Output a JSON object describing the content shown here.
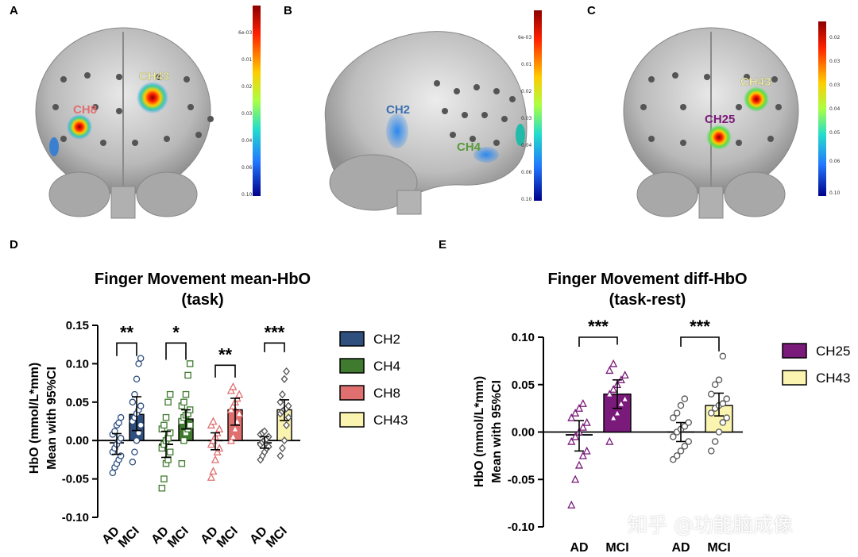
{
  "panels": {
    "a": "A",
    "b": "B",
    "c": "C",
    "d": "D",
    "e": "E"
  },
  "brain_a": {
    "labels": [
      "CH43",
      "CH8"
    ],
    "label_colors": [
      "#f3f0a0",
      "#e07070"
    ],
    "colorbar_ticks": [
      "6e-03",
      "0.01",
      "0.02",
      "0.03",
      "0.04",
      "0.06",
      "0.10"
    ]
  },
  "brain_b": {
    "labels": [
      "CH2",
      "CH4"
    ],
    "label_colors": [
      "#3a6fb0",
      "#5a9a3a"
    ],
    "colorbar_ticks": [
      "6e-03",
      "0.01",
      "0.02",
      "0.03",
      "0.04",
      "0.06",
      "0.10"
    ]
  },
  "brain_c": {
    "labels": [
      "CH43",
      "CH25"
    ],
    "label_colors": [
      "#f3f0a0",
      "#7a1a7a"
    ],
    "colorbar_ticks": [
      "0.02",
      "0.03",
      "0.03",
      "0.04",
      "0.05",
      "0.06",
      "0.10"
    ]
  },
  "watermark": "知乎 @功能脑成像",
  "chart_data": [
    {
      "type": "bar",
      "title": "Finger Movement mean-HbO",
      "subtitle": "(task)",
      "ylabel": "HbO (mmol/L*mm)",
      "ylabel2": "Mean with 95%CI",
      "ylim": [
        -0.1,
        0.15
      ],
      "yticks": [
        "0.15",
        "0.10",
        "0.05",
        "0.00",
        "-0.05",
        "-0.10"
      ],
      "ytick_values": [
        0.15,
        0.1,
        0.05,
        0.0,
        -0.05,
        -0.1
      ],
      "categories": [
        "AD",
        "MCI"
      ],
      "series": [
        {
          "name": "CH2",
          "color": "#2f4f7f",
          "marker": "circle",
          "means": [
            -0.003,
            0.034
          ],
          "ci_low": [
            -0.018,
            0.013
          ],
          "ci_high": [
            0.009,
            0.057
          ],
          "sig": "**",
          "points_ad": [
            -0.042,
            -0.035,
            -0.03,
            -0.025,
            -0.02,
            -0.015,
            -0.01,
            -0.005,
            0.0,
            0.003,
            0.008,
            0.012,
            0.02,
            0.023,
            0.03
          ],
          "points_mci": [
            -0.028,
            -0.015,
            0.0,
            0.01,
            0.02,
            0.025,
            0.03,
            0.035,
            0.04,
            0.045,
            0.05,
            0.06,
            0.08,
            0.1,
            0.107
          ]
        },
        {
          "name": "CH4",
          "color": "#3f7a2f",
          "marker": "square",
          "means": [
            -0.005,
            0.028
          ],
          "ci_low": [
            -0.022,
            0.015
          ],
          "ci_high": [
            0.012,
            0.04
          ],
          "sig": "*",
          "points_ad": [
            -0.062,
            -0.05,
            -0.03,
            -0.025,
            -0.015,
            -0.01,
            -0.005,
            0.0,
            0.003,
            0.01,
            0.015,
            0.02,
            0.03,
            0.05,
            0.06
          ],
          "points_mci": [
            -0.03,
            0.0,
            0.01,
            0.015,
            0.02,
            0.025,
            0.03,
            0.033,
            0.035,
            0.04,
            0.045,
            0.05,
            0.06,
            0.085,
            0.1
          ]
        },
        {
          "name": "CH8",
          "color": "#e07070",
          "marker": "triangle",
          "means": [
            0.0,
            0.04
          ],
          "ci_low": [
            -0.012,
            0.02
          ],
          "ci_high": [
            0.01,
            0.055
          ],
          "sig": "**",
          "points_ad": [
            -0.048,
            -0.04,
            -0.025,
            -0.015,
            -0.01,
            -0.005,
            0.0,
            0.005,
            0.01,
            0.015,
            0.02,
            0.025
          ],
          "points_mci": [
            0.0,
            0.005,
            0.015,
            0.025,
            0.035,
            0.04,
            0.045,
            0.05,
            0.055,
            0.06,
            0.065,
            0.07
          ]
        },
        {
          "name": "CH43",
          "color": "#fbf3b0",
          "marker": "diamond",
          "means": [
            -0.003,
            0.04
          ],
          "ci_low": [
            -0.01,
            0.026
          ],
          "ci_high": [
            0.005,
            0.053
          ],
          "sig": "***",
          "points_ad": [
            -0.025,
            -0.02,
            -0.015,
            -0.01,
            -0.008,
            -0.005,
            -0.002,
            0.0,
            0.002,
            0.005,
            0.008,
            0.01,
            0.012
          ],
          "points_mci": [
            -0.02,
            -0.01,
            0.0,
            0.02,
            0.03,
            0.035,
            0.038,
            0.04,
            0.042,
            0.045,
            0.05,
            0.06,
            0.08,
            0.09
          ]
        }
      ]
    },
    {
      "type": "bar",
      "title": "Finger Movement diff-HbO",
      "subtitle": "(task-rest)",
      "ylabel": "HbO (mmol/L*mm)",
      "ylabel2": "Mean with 95%CI",
      "ylim": [
        -0.1,
        0.1
      ],
      "yticks": [
        "0.10",
        "0.05",
        "0.00",
        "-0.05",
        "-0.10"
      ],
      "ytick_values": [
        0.1,
        0.05,
        0.0,
        -0.05,
        -0.1
      ],
      "categories": [
        "AD",
        "MCI"
      ],
      "series": [
        {
          "name": "CH25",
          "color": "#7a1a7a",
          "marker": "triangle",
          "means": [
            -0.003,
            0.04
          ],
          "ci_low": [
            -0.02,
            0.025
          ],
          "ci_high": [
            0.012,
            0.055
          ],
          "sig": "***",
          "points_ad": [
            -0.077,
            -0.05,
            -0.035,
            -0.025,
            -0.02,
            -0.01,
            -0.005,
            0.0,
            0.005,
            0.01,
            0.015,
            0.02,
            0.025,
            0.03
          ],
          "points_mci": [
            -0.01,
            0.015,
            0.02,
            0.03,
            0.035,
            0.04,
            0.045,
            0.05,
            0.055,
            0.06,
            0.065,
            0.072
          ]
        },
        {
          "name": "CH43",
          "color": "#fbf3b0",
          "marker": "circle",
          "means": [
            0.0,
            0.028
          ],
          "ci_low": [
            -0.01,
            0.017
          ],
          "ci_high": [
            0.01,
            0.041
          ],
          "sig": "***",
          "points_ad": [
            -0.029,
            -0.025,
            -0.02,
            -0.015,
            -0.01,
            -0.005,
            0.0,
            0.003,
            0.006,
            0.01,
            0.015,
            0.02,
            0.028,
            0.035
          ],
          "points_mci": [
            -0.02,
            -0.01,
            0.0,
            0.01,
            0.015,
            0.02,
            0.025,
            0.028,
            0.03,
            0.035,
            0.04,
            0.05,
            0.055,
            0.08
          ]
        }
      ]
    }
  ]
}
